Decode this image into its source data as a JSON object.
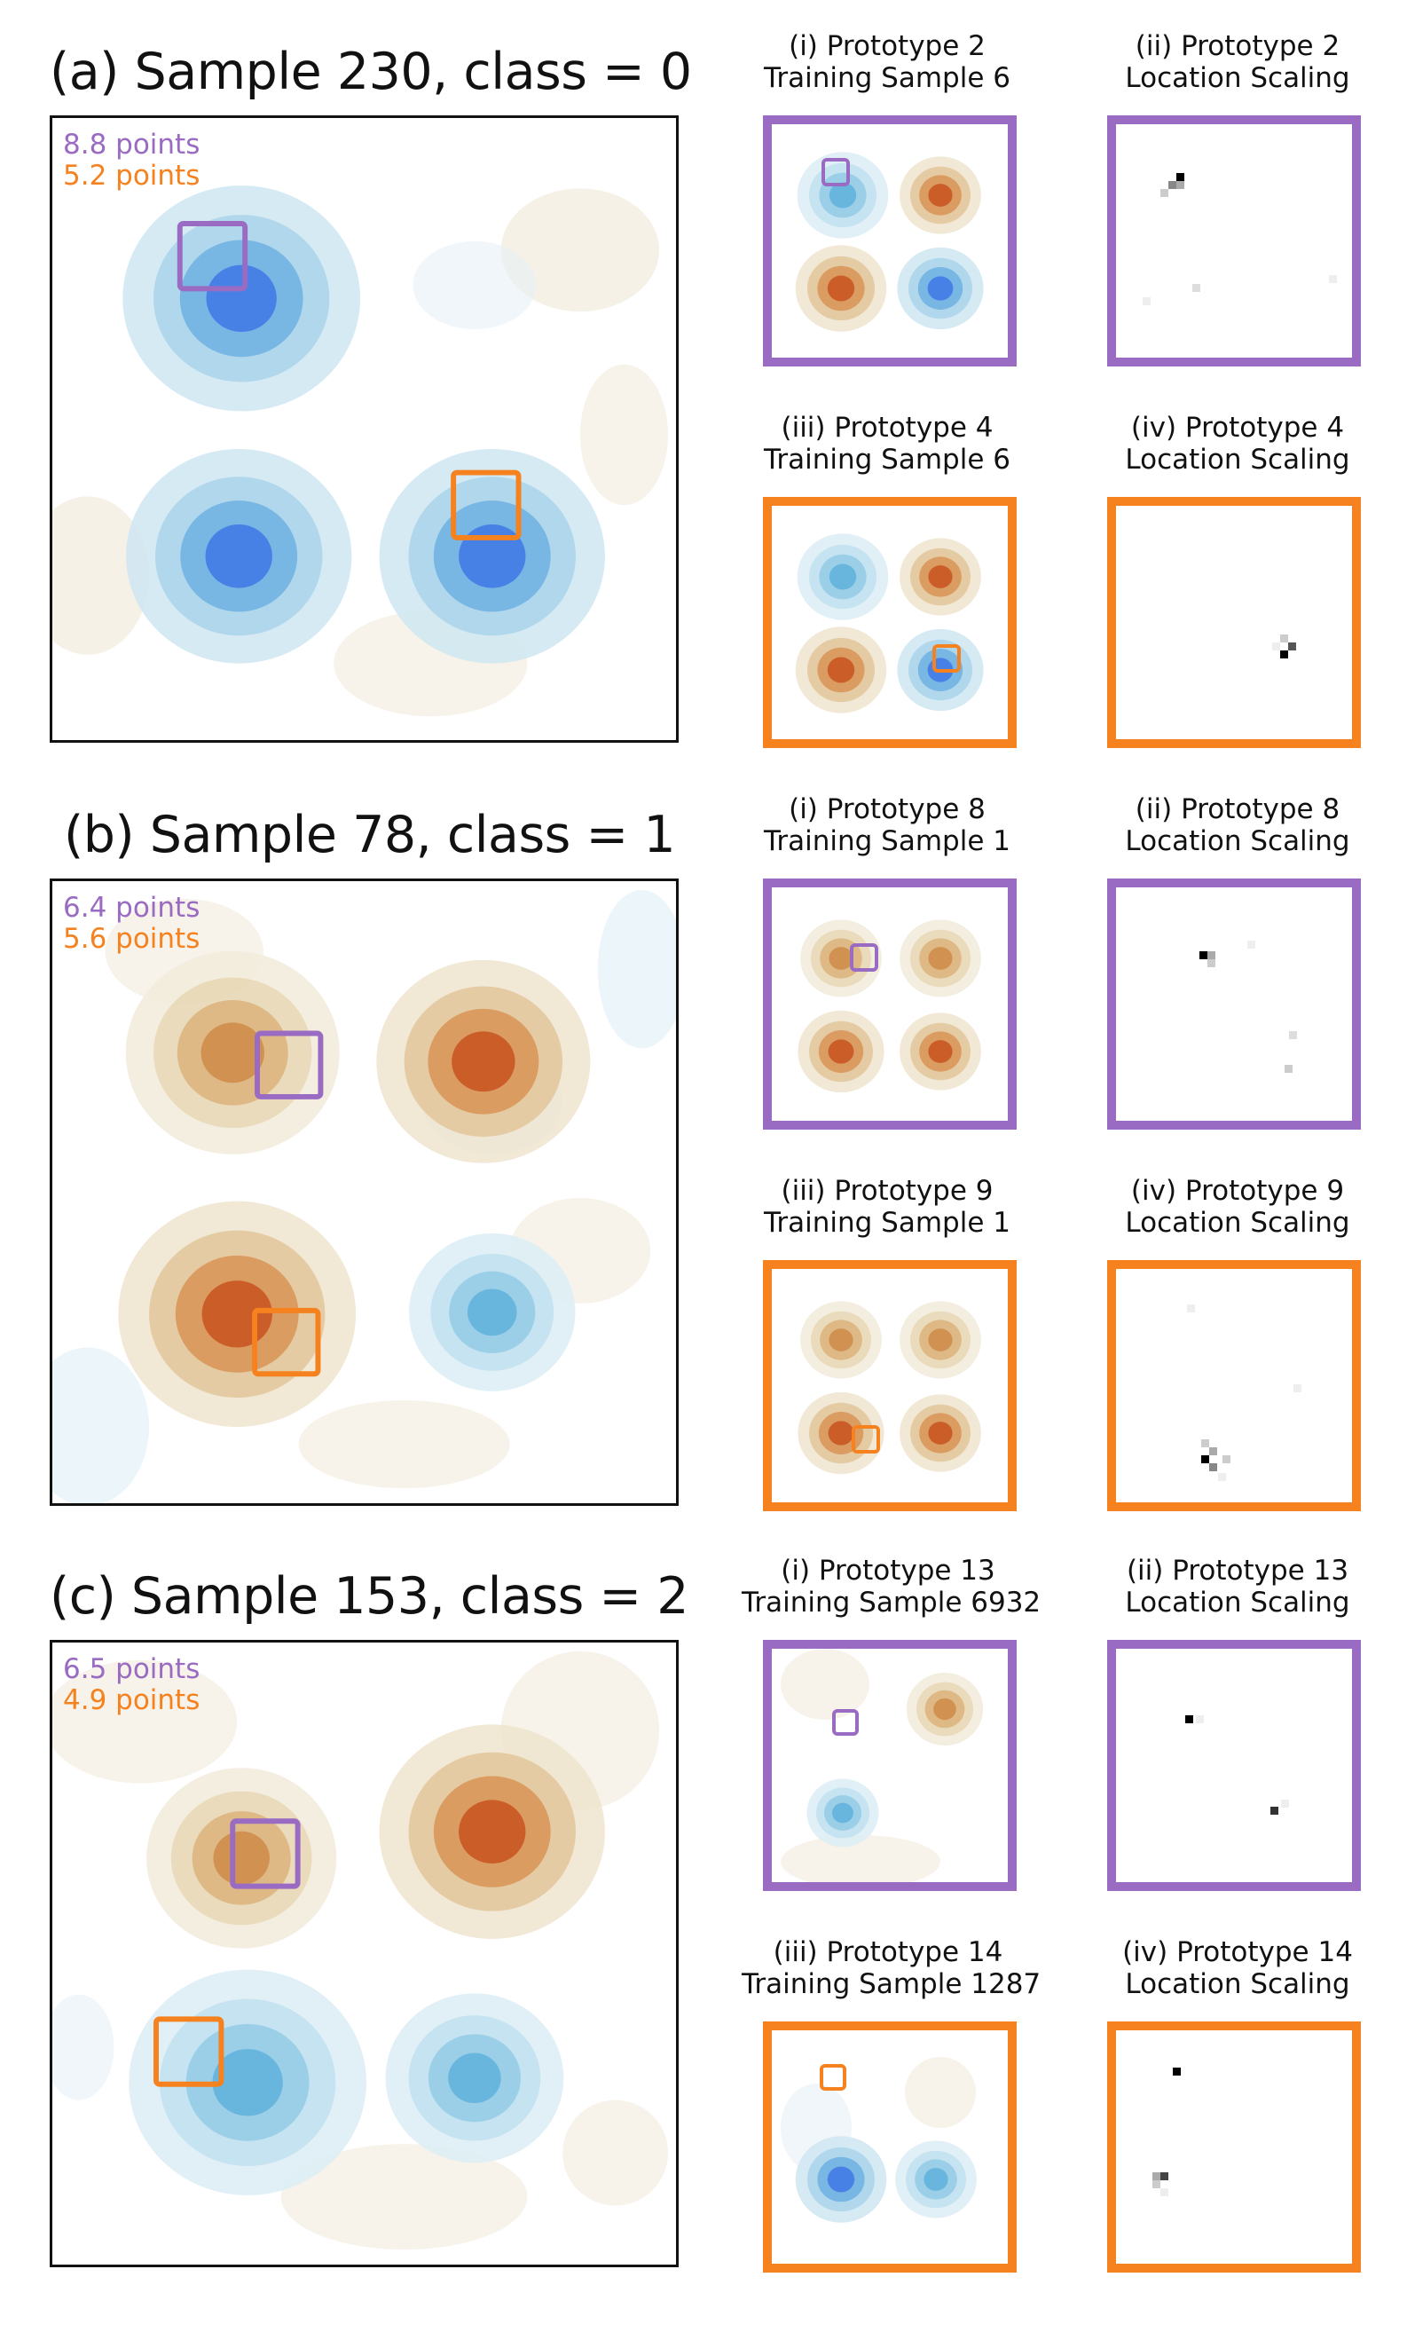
{
  "colors": {
    "purple": "#9a6bc2",
    "orange": "#f5821f",
    "blue": "#2f6fe0",
    "lightblue": "#7fc3e3",
    "brown": "#c4521a",
    "tan": "#d9c9a6"
  },
  "rows": [
    {
      "title": "(a) Sample 230, class = 0",
      "points_purple": "8.8 points",
      "points_orange": "5.2 points",
      "protos": [
        {
          "title1": "(i) Prototype 2",
          "title2": "Training Sample 6",
          "scale1": "(ii) Prototype 2",
          "scale2": "Location Scaling"
        },
        {
          "title1": "(iii) Prototype 4",
          "title2": "Training Sample 6",
          "scale1": "(iv) Prototype 4",
          "scale2": "Location Scaling"
        }
      ]
    },
    {
      "title": "(b) Sample 78, class = 1",
      "points_purple": "6.4 points",
      "points_orange": "5.6 points",
      "protos": [
        {
          "title1": "(i) Prototype 8",
          "title2": "Training Sample 1",
          "scale1": "(ii) Prototype 8",
          "scale2": "Location Scaling"
        },
        {
          "title1": "(iii) Prototype 9",
          "title2": "Training Sample 1",
          "scale1": "(iv) Prototype 9",
          "scale2": "Location Scaling"
        }
      ]
    },
    {
      "title": "(c) Sample 153, class = 2",
      "points_purple": "6.5 points",
      "points_orange": "4.9 points",
      "protos": [
        {
          "title1": "(i) Prototype 13",
          "title2": "Training Sample 6932",
          "scale1": "(ii) Prototype 13",
          "scale2": "Location Scaling"
        },
        {
          "title1": "(iii) Prototype 14",
          "title2": "Training Sample 1287",
          "scale1": "(iv) Prototype 14",
          "scale2": "Location Scaling"
        }
      ]
    }
  ]
}
